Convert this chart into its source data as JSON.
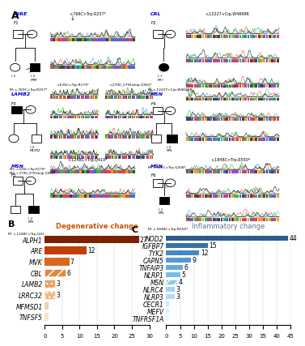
{
  "panel_B": {
    "title": "Degenerative change",
    "title_color": "#CC5500",
    "categories": [
      "ALPH1",
      "ARE",
      "MVK",
      "CBL",
      "LAMB2",
      "LRRC32",
      "MFMSD1",
      "TNFSF5"
    ],
    "values": [
      27,
      12,
      7,
      6,
      3,
      3,
      1,
      1
    ],
    "colors": [
      "#7B2000",
      "#C04000",
      "#D86820",
      "#E08840",
      "#EBA060",
      "#F0B87A",
      "#F5CFA0",
      "#FAE4C8"
    ],
    "hatch": [
      null,
      null,
      null,
      "///",
      "...",
      "...",
      null,
      null
    ],
    "xlim": [
      0,
      30
    ],
    "xticks": [
      0,
      5,
      10,
      15,
      20,
      25,
      30
    ],
    "label_threshold": 2
  },
  "panel_C": {
    "title": "Inflammatory change",
    "title_color": "#607890",
    "categories": [
      "NOD2",
      "IGFBP7",
      "TYK2",
      "CAPN5",
      "TNFAIP3",
      "NLRP1",
      "MSN",
      "NLRC4",
      "NLRP3",
      "CECR1",
      "MEFV",
      "TNFRSF1A"
    ],
    "values": [
      44,
      15,
      12,
      9,
      6,
      5,
      4,
      3,
      3,
      1,
      1,
      1
    ],
    "colors": [
      "#2B5C8A",
      "#3870A8",
      "#4888C0",
      "#5898D0",
      "#6AAAD8",
      "#7ABCE8",
      "#8AC8F0",
      "#A0D4F5",
      "#B0DCF8",
      "#C8ECFC",
      "#D8F2FD",
      "#E8F8FE"
    ],
    "hatch": [
      null,
      null,
      null,
      null,
      null,
      null,
      "///",
      null,
      null,
      null,
      null,
      null
    ],
    "xlim": [
      0,
      45
    ],
    "xticks": [
      0,
      5,
      10,
      15,
      20,
      25,
      30,
      35,
      40,
      45
    ],
    "label_threshold": 2
  },
  "panel_A": {
    "label": "A",
    "panel_B_label": "B",
    "panel_C_label": "C"
  }
}
